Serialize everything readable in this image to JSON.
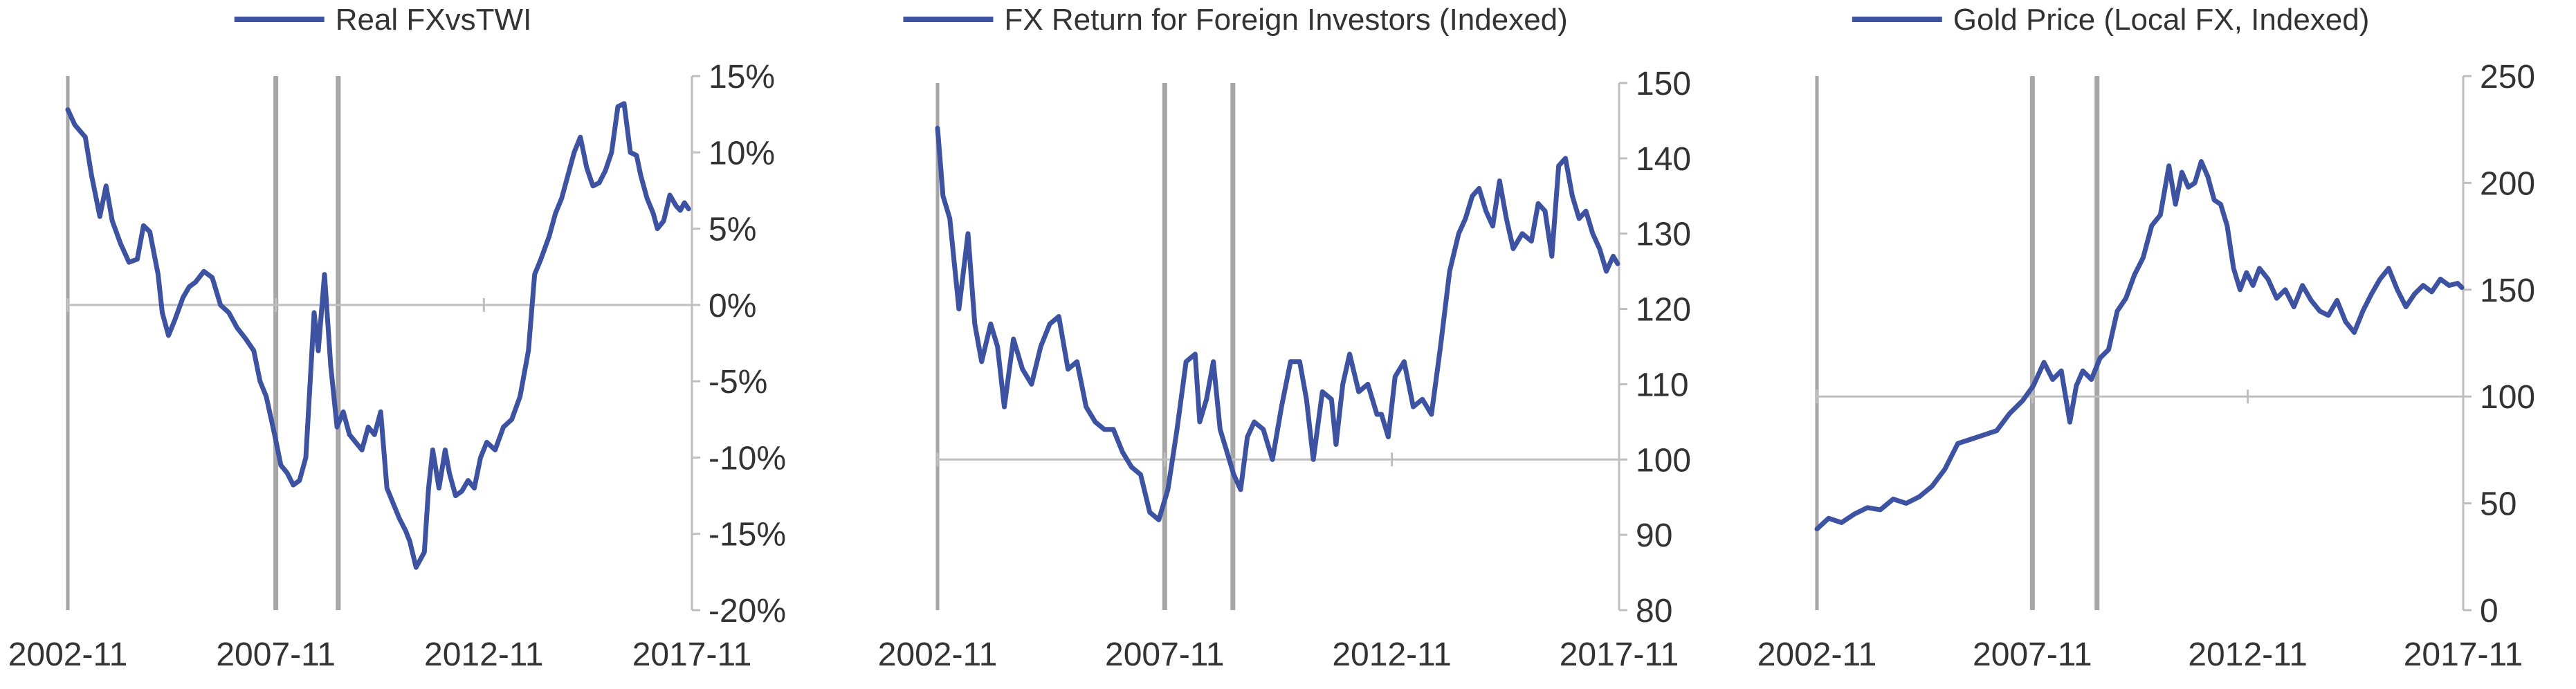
{
  "colors": {
    "line": "#3d52a1",
    "axis": "#bfbfbf",
    "event_band": "#a6a6a6",
    "text": "#333333"
  },
  "chart_data": [
    {
      "type": "line",
      "legend": "Real FXvsTWI",
      "legend_position": "top",
      "y_axis_side": "right",
      "ylim": [
        -0.2,
        0.15
      ],
      "yticks": [
        -0.2,
        -0.15,
        -0.1,
        -0.05,
        0.0,
        0.05,
        0.1,
        0.15
      ],
      "ytick_labels": [
        "-20%",
        "-15%",
        "-10%",
        "-5%",
        "0%",
        "5%",
        "10%",
        "15%"
      ],
      "baseline": 0,
      "xlim": [
        2002.83,
        2017.83
      ],
      "xtick_labels": [
        "2002-11",
        "2007-11",
        "2012-11",
        "2017-11"
      ],
      "xticks": [
        2002.83,
        2007.83,
        2012.83,
        2017.83
      ],
      "event_lines": [
        2007.83,
        2009.33
      ],
      "series": [
        {
          "x": [
            2002.83,
            2003.0,
            2003.25,
            2003.4,
            2003.6,
            2003.75,
            2003.9,
            2004.1,
            2004.3,
            2004.5,
            2004.65,
            2004.8,
            2005.0,
            2005.1,
            2005.25,
            2005.4,
            2005.6,
            2005.75,
            2005.9,
            2006.1,
            2006.3,
            2006.5,
            2006.7,
            2006.9,
            2007.1,
            2007.3,
            2007.45,
            2007.6,
            2007.8,
            2007.95,
            2008.1,
            2008.25,
            2008.4,
            2008.55,
            2008.75,
            2008.85,
            2009.0,
            2009.15,
            2009.3,
            2009.45,
            2009.6,
            2009.75,
            2009.9,
            2010.05,
            2010.2,
            2010.35,
            2010.5,
            2010.65,
            2010.8,
            2010.95,
            2011.05,
            2011.2,
            2011.4,
            2011.5,
            2011.6,
            2011.75,
            2011.9,
            2012.0,
            2012.15,
            2012.3,
            2012.45,
            2012.6,
            2012.75,
            2012.9,
            2013.1,
            2013.3,
            2013.5,
            2013.7,
            2013.9,
            2014.05,
            2014.2,
            2014.4,
            2014.55,
            2014.7,
            2014.85,
            2015.0,
            2015.15,
            2015.3,
            2015.45,
            2015.6,
            2015.75,
            2015.9,
            2016.05,
            2016.2,
            2016.35,
            2016.5,
            2016.6,
            2016.75,
            2016.9,
            2017.0,
            2017.15,
            2017.3,
            2017.45,
            2017.55,
            2017.65,
            2017.75
          ],
          "y": [
            0.128,
            0.118,
            0.11,
            0.085,
            0.058,
            0.078,
            0.055,
            0.04,
            0.028,
            0.03,
            0.052,
            0.048,
            0.02,
            -0.005,
            -0.02,
            -0.01,
            0.005,
            0.012,
            0.015,
            0.022,
            0.018,
            0.0,
            -0.005,
            -0.015,
            -0.022,
            -0.03,
            -0.05,
            -0.06,
            -0.085,
            -0.105,
            -0.11,
            -0.118,
            -0.115,
            -0.1,
            -0.005,
            -0.03,
            0.02,
            -0.04,
            -0.08,
            -0.07,
            -0.085,
            -0.09,
            -0.095,
            -0.08,
            -0.085,
            -0.07,
            -0.12,
            -0.13,
            -0.14,
            -0.148,
            -0.155,
            -0.172,
            -0.162,
            -0.12,
            -0.095,
            -0.12,
            -0.095,
            -0.11,
            -0.125,
            -0.122,
            -0.115,
            -0.12,
            -0.1,
            -0.09,
            -0.095,
            -0.08,
            -0.075,
            -0.06,
            -0.03,
            0.02,
            0.03,
            0.045,
            0.06,
            0.07,
            0.085,
            0.1,
            0.11,
            0.09,
            0.078,
            0.08,
            0.088,
            0.1,
            0.13,
            0.132,
            0.1,
            0.098,
            0.085,
            0.07,
            0.06,
            0.05,
            0.055,
            0.072,
            0.065,
            0.062,
            0.067,
            0.063
          ]
        }
      ]
    },
    {
      "type": "line",
      "legend": "FX Return for Foreign Investors (Indexed)",
      "legend_position": "top",
      "y_axis_side": "right",
      "ylim": [
        80,
        150
      ],
      "yticks": [
        80,
        90,
        100,
        110,
        120,
        130,
        140,
        150
      ],
      "ytick_labels": [
        "80",
        "90",
        "100",
        "110",
        "120",
        "130",
        "140",
        "150"
      ],
      "baseline": 100,
      "xlim": [
        2002.83,
        2017.83
      ],
      "xtick_labels": [
        "2002-11",
        "2007-11",
        "2012-11",
        "2017-11"
      ],
      "xticks": [
        2002.83,
        2007.83,
        2012.83,
        2017.83
      ],
      "event_lines": [
        2007.83,
        2009.33
      ],
      "series": [
        {
          "x": [
            2002.83,
            2002.95,
            2003.1,
            2003.3,
            2003.5,
            2003.65,
            2003.8,
            2004.0,
            2004.15,
            2004.3,
            2004.5,
            2004.7,
            2004.9,
            2005.1,
            2005.3,
            2005.5,
            2005.7,
            2005.9,
            2006.1,
            2006.3,
            2006.5,
            2006.7,
            2006.9,
            2007.1,
            2007.3,
            2007.5,
            2007.7,
            2007.9,
            2008.1,
            2008.3,
            2008.5,
            2008.6,
            2008.75,
            2008.9,
            2009.05,
            2009.2,
            2009.35,
            2009.5,
            2009.65,
            2009.8,
            2010.0,
            2010.2,
            2010.4,
            2010.6,
            2010.8,
            2010.95,
            2011.1,
            2011.3,
            2011.5,
            2011.6,
            2011.75,
            2011.9,
            2012.1,
            2012.3,
            2012.5,
            2012.6,
            2012.75,
            2012.9,
            2013.1,
            2013.3,
            2013.5,
            2013.7,
            2013.9,
            2014.1,
            2014.3,
            2014.45,
            2014.6,
            2014.75,
            2014.9,
            2015.05,
            2015.2,
            2015.35,
            2015.5,
            2015.7,
            2015.9,
            2016.05,
            2016.2,
            2016.35,
            2016.5,
            2016.65,
            2016.8,
            2016.95,
            2017.1,
            2017.25,
            2017.4,
            2017.55,
            2017.7,
            2017.8
          ],
          "y": [
            144,
            135,
            132,
            120,
            130,
            118,
            113,
            118,
            115,
            107,
            116,
            112,
            110,
            115,
            118,
            119,
            112,
            113,
            107,
            105,
            104,
            104,
            101,
            99,
            98,
            93,
            92,
            96,
            104,
            113,
            114,
            105,
            108,
            113,
            104,
            101,
            98,
            96,
            103,
            105,
            104,
            100,
            107,
            113,
            113,
            108,
            100,
            109,
            108,
            102,
            110,
            114,
            109,
            110,
            106,
            106,
            103,
            111,
            113,
            107,
            108,
            106,
            115,
            125,
            130,
            132,
            135,
            136,
            133,
            131,
            137,
            132,
            128,
            130,
            129,
            134,
            133,
            127,
            139,
            140,
            135,
            132,
            133,
            130,
            128,
            125,
            127,
            126
          ]
        }
      ]
    },
    {
      "type": "line",
      "legend": "Gold Price (Local FX, Indexed)",
      "legend_position": "top",
      "y_axis_side": "right",
      "ylim": [
        0,
        250
      ],
      "yticks": [
        0,
        50,
        100,
        150,
        200,
        250
      ],
      "ytick_labels": [
        "0",
        "50",
        "100",
        "150",
        "200",
        "250"
      ],
      "baseline": 100,
      "xlim": [
        2002.83,
        2017.83
      ],
      "xtick_labels": [
        "2002-11",
        "2007-11",
        "2012-11",
        "2017-11"
      ],
      "xticks": [
        2002.83,
        2007.83,
        2012.83,
        2017.83
      ],
      "event_lines": [
        2007.83,
        2009.33
      ],
      "series": [
        {
          "x": [
            2002.83,
            2003.1,
            2003.4,
            2003.7,
            2004.0,
            2004.3,
            2004.6,
            2004.9,
            2005.2,
            2005.5,
            2005.8,
            2006.1,
            2006.4,
            2006.7,
            2007.0,
            2007.3,
            2007.6,
            2007.85,
            2008.1,
            2008.3,
            2008.5,
            2008.7,
            2008.85,
            2009.0,
            2009.2,
            2009.4,
            2009.6,
            2009.8,
            2010.0,
            2010.2,
            2010.4,
            2010.6,
            2010.8,
            2011.0,
            2011.15,
            2011.3,
            2011.45,
            2011.6,
            2011.75,
            2011.9,
            2012.05,
            2012.2,
            2012.35,
            2012.5,
            2012.65,
            2012.8,
            2012.95,
            2013.1,
            2013.3,
            2013.5,
            2013.7,
            2013.9,
            2014.1,
            2014.3,
            2014.5,
            2014.7,
            2014.9,
            2015.1,
            2015.3,
            2015.5,
            2015.7,
            2015.9,
            2016.1,
            2016.3,
            2016.5,
            2016.7,
            2016.9,
            2017.1,
            2017.3,
            2017.5,
            2017.7,
            2017.8
          ],
          "y": [
            38,
            43,
            41,
            45,
            48,
            47,
            52,
            50,
            53,
            58,
            66,
            78,
            80,
            82,
            84,
            92,
            98,
            105,
            116,
            108,
            112,
            88,
            105,
            112,
            108,
            118,
            122,
            140,
            146,
            157,
            165,
            180,
            185,
            208,
            190,
            205,
            198,
            200,
            210,
            203,
            192,
            190,
            180,
            160,
            150,
            158,
            152,
            160,
            155,
            146,
            150,
            142,
            152,
            145,
            140,
            138,
            145,
            135,
            130,
            140,
            148,
            155,
            160,
            150,
            142,
            148,
            152,
            149,
            155,
            152,
            153,
            151
          ]
        }
      ]
    }
  ]
}
